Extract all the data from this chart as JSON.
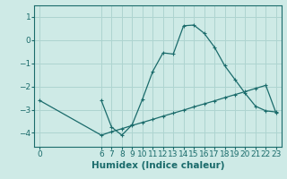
{
  "xlabel": "Humidex (Indice chaleur)",
  "bg_color": "#ceeae6",
  "grid_color": "#aed4d0",
  "line_color": "#1a6b6b",
  "spine_color": "#1a6b6b",
  "x_ticks": [
    0,
    6,
    7,
    8,
    9,
    10,
    11,
    12,
    13,
    14,
    15,
    16,
    17,
    18,
    19,
    20,
    21,
    22,
    23
  ],
  "y_ticks": [
    1,
    0,
    -1,
    -2,
    -3,
    -4
  ],
  "xlim": [
    -0.5,
    23.5
  ],
  "ylim": [
    -4.6,
    1.5
  ],
  "curve_x": [
    6,
    7,
    8,
    9,
    10,
    11,
    12,
    13,
    14,
    15,
    16,
    17,
    18,
    19,
    20,
    21,
    22,
    23
  ],
  "curve_y": [
    -2.6,
    -3.75,
    -4.1,
    -3.65,
    -2.55,
    -1.35,
    -0.55,
    -0.6,
    0.62,
    0.65,
    0.3,
    -0.3,
    -1.1,
    -1.7,
    -2.3,
    -2.85,
    -3.05,
    -3.1
  ],
  "ref_x": [
    0,
    6,
    7,
    8,
    9,
    10,
    11,
    12,
    13,
    14,
    15,
    16,
    17,
    18,
    19,
    20,
    21,
    22,
    23
  ],
  "ref_y": [
    -2.6,
    -4.1,
    -3.95,
    -3.82,
    -3.68,
    -3.55,
    -3.42,
    -3.28,
    -3.15,
    -3.02,
    -2.88,
    -2.75,
    -2.62,
    -2.48,
    -2.35,
    -2.22,
    -2.08,
    -1.95,
    -3.15
  ],
  "tick_fontsize": 6.5,
  "label_fontsize": 7.5
}
